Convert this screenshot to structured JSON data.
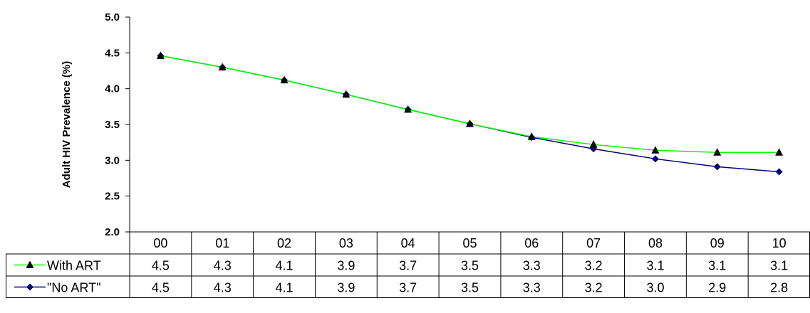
{
  "chart_data": {
    "type": "line",
    "title": "",
    "xlabel": "",
    "ylabel": "Adult HIV Prevalence (%)",
    "ylim": [
      2.0,
      5.0
    ],
    "ytick_step": 0.5,
    "ytick_labels": [
      "2.0",
      "2.5",
      "3.0",
      "3.5",
      "4.0",
      "4.5",
      "5.0"
    ],
    "grid": false,
    "legend": "data table rows",
    "categories": [
      "00",
      "01",
      "02",
      "03",
      "04",
      "05",
      "06",
      "07",
      "08",
      "09",
      "10"
    ],
    "series": [
      {
        "name": "With ART",
        "color": "#00ff00",
        "marker": "triangle",
        "marker_color": "#000000",
        "values": [
          4.46,
          4.3,
          4.12,
          3.92,
          3.71,
          3.51,
          3.33,
          3.22,
          3.14,
          3.11,
          3.11
        ],
        "table_labels": [
          "4.5",
          "4.3",
          "4.1",
          "3.9",
          "3.7",
          "3.5",
          "3.3",
          "3.2",
          "3.1",
          "3.1",
          "3.1"
        ]
      },
      {
        "name": "\"No ART\"",
        "color": "#000080",
        "marker": "diamond",
        "marker_color": "#000080",
        "values": [
          4.46,
          4.3,
          4.12,
          3.92,
          3.71,
          3.51,
          3.32,
          3.16,
          3.02,
          2.91,
          2.84
        ],
        "table_labels": [
          "4.5",
          "4.3",
          "4.1",
          "3.9",
          "3.7",
          "3.5",
          "3.3",
          "3.2",
          "3.0",
          "2.9",
          "2.8"
        ]
      }
    ]
  }
}
